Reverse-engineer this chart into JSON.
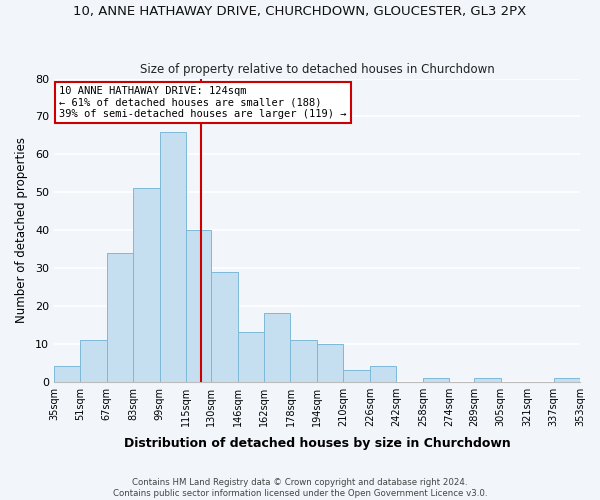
{
  "title": "10, ANNE HATHAWAY DRIVE, CHURCHDOWN, GLOUCESTER, GL3 2PX",
  "subtitle": "Size of property relative to detached houses in Churchdown",
  "xlabel": "Distribution of detached houses by size in Churchdown",
  "ylabel": "Number of detached properties",
  "bar_color": "#c5dff0",
  "bar_edge_color": "#7db9d9",
  "vline_x": 124,
  "vline_color": "#cc0000",
  "annotation_title": "10 ANNE HATHAWAY DRIVE: 124sqm",
  "annotation_line1": "← 61% of detached houses are smaller (188)",
  "annotation_line2": "39% of semi-detached houses are larger (119) →",
  "annotation_box_color": "#ffffff",
  "annotation_box_edge": "#cc0000",
  "bins": [
    35,
    51,
    67,
    83,
    99,
    115,
    130,
    146,
    162,
    178,
    194,
    210,
    226,
    242,
    258,
    274,
    289,
    305,
    321,
    337,
    353
  ],
  "counts": [
    4,
    11,
    34,
    51,
    66,
    40,
    29,
    13,
    18,
    11,
    10,
    3,
    4,
    0,
    1,
    0,
    1,
    0,
    0,
    1
  ],
  "xlim_left": 35,
  "xlim_right": 353,
  "ylim_top": 80,
  "yticks": [
    0,
    10,
    20,
    30,
    40,
    50,
    60,
    70,
    80
  ],
  "tick_labels": [
    "35sqm",
    "51sqm",
    "67sqm",
    "83sqm",
    "99sqm",
    "115sqm",
    "130sqm",
    "146sqm",
    "162sqm",
    "178sqm",
    "194sqm",
    "210sqm",
    "226sqm",
    "242sqm",
    "258sqm",
    "274sqm",
    "289sqm",
    "305sqm",
    "321sqm",
    "337sqm",
    "353sqm"
  ],
  "footer1": "Contains HM Land Registry data © Crown copyright and database right 2024.",
  "footer2": "Contains public sector information licensed under the Open Government Licence v3.0.",
  "background_color": "#f2f6fa",
  "grid_color": "#ffffff"
}
